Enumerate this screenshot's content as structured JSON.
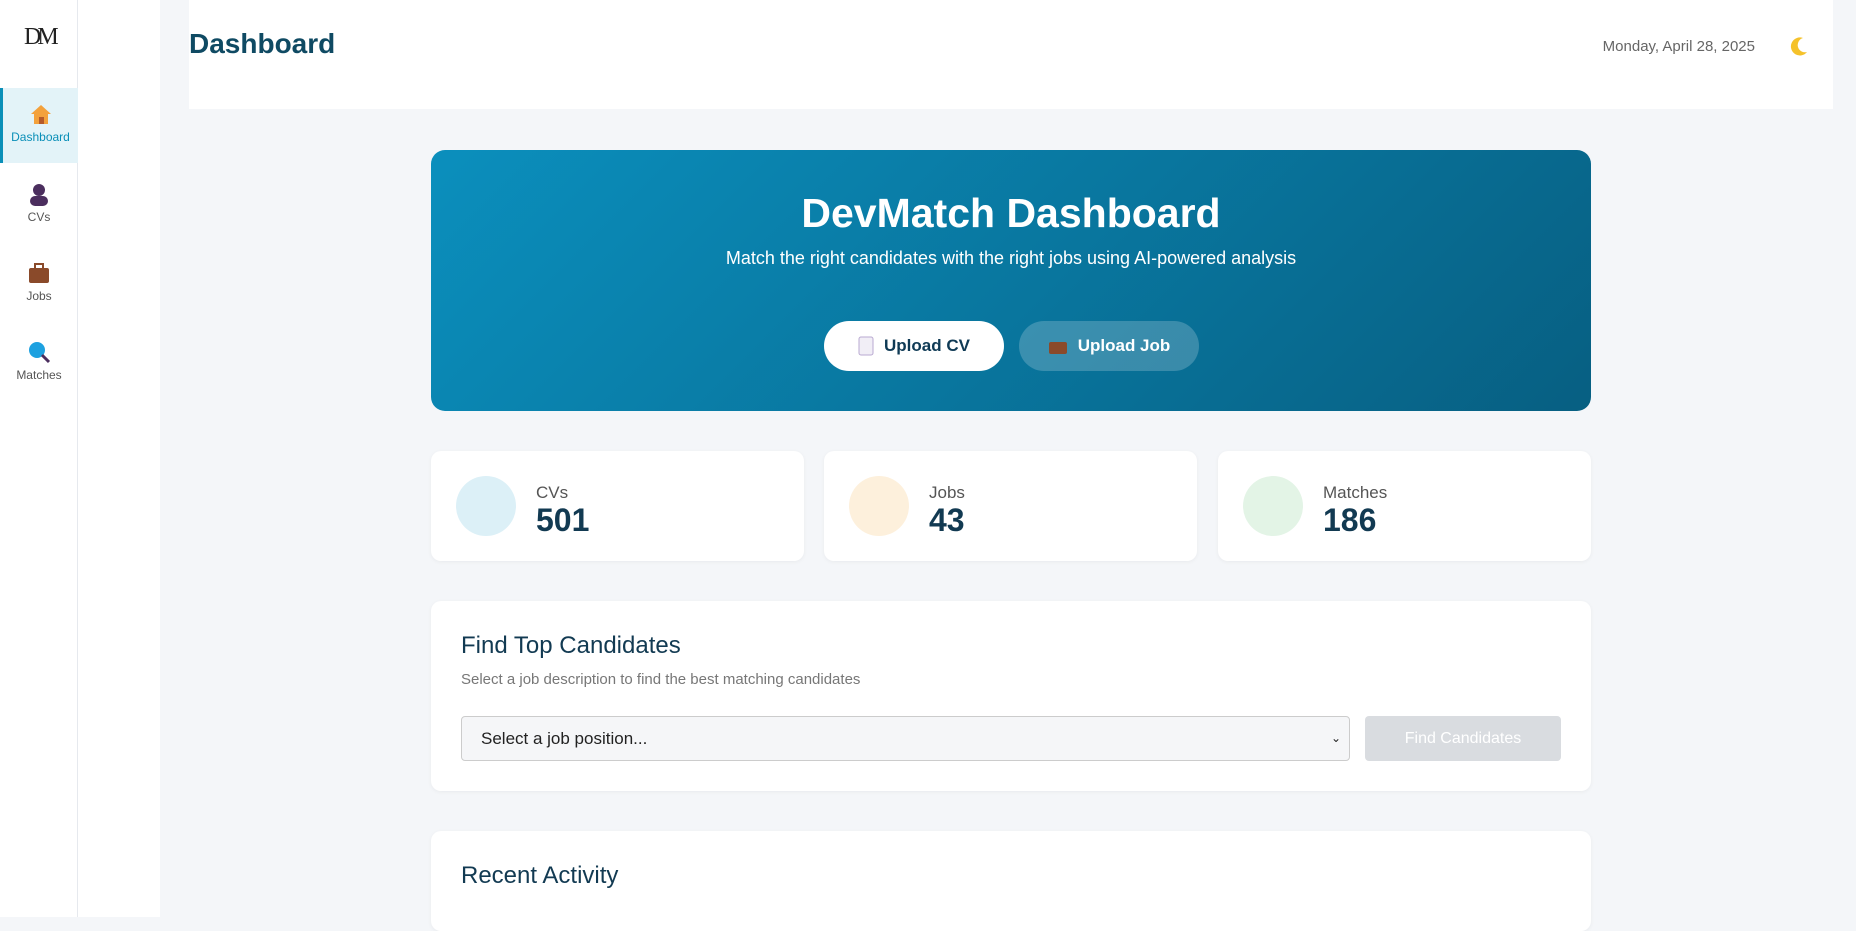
{
  "sidebar": {
    "logo": "DM",
    "nav": [
      {
        "label": "Dashboard"
      },
      {
        "label": "CVs"
      },
      {
        "label": "Jobs"
      },
      {
        "label": "Matches"
      }
    ]
  },
  "header": {
    "title": "Dashboard",
    "date": "Monday, April 28, 2025"
  },
  "hero": {
    "title": "DevMatch Dashboard",
    "subtitle": "Match the right candidates with the right jobs using AI-powered analysis",
    "buttons": [
      "Upload CV",
      "Upload Job"
    ]
  },
  "stats": [
    {
      "label": "CVs",
      "value": "501"
    },
    {
      "label": "Jobs",
      "value": "43"
    },
    {
      "label": "Matches",
      "value": "186"
    }
  ],
  "find": {
    "title": "Find Top Candidates",
    "subtitle": "Select a job description to find the best matching candidates",
    "select_placeholder": "Select a job position...",
    "button": "Find Candidates"
  },
  "recent": {
    "title": "Recent Activity"
  }
}
